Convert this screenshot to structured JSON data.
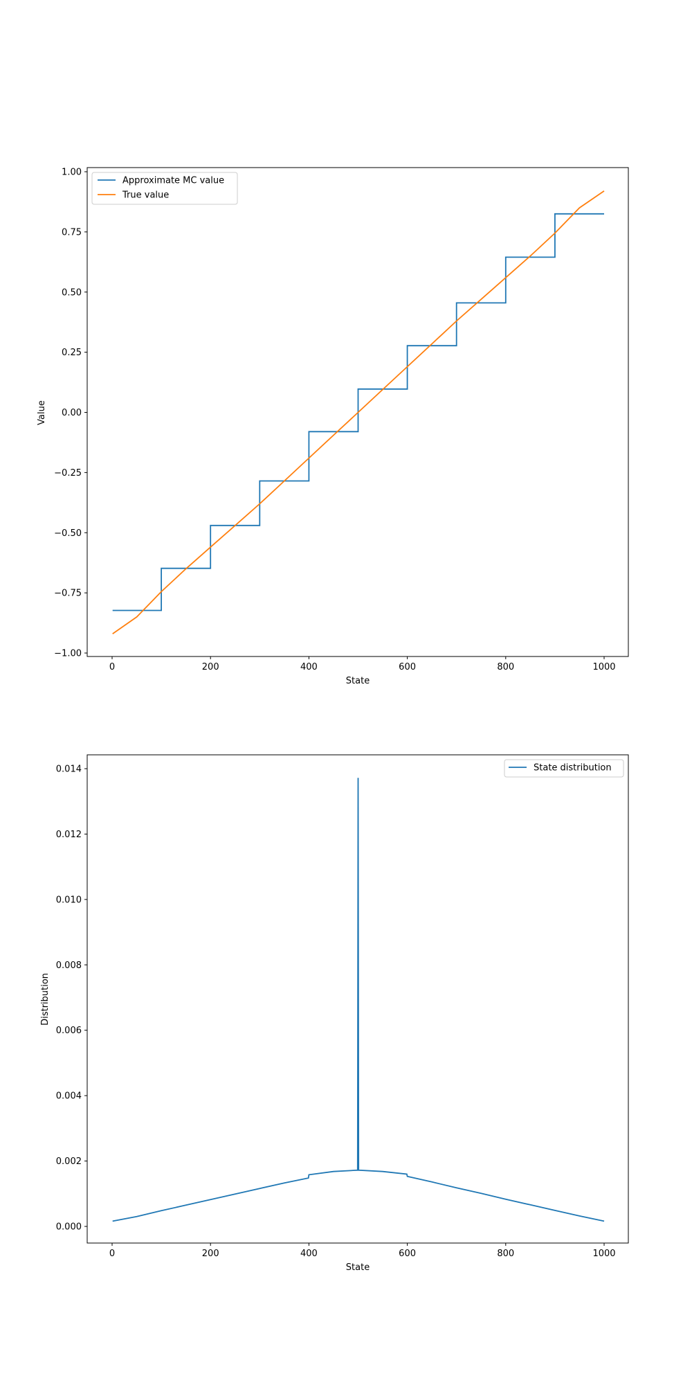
{
  "chart_data": [
    {
      "type": "line",
      "title": "",
      "xlabel": "State",
      "ylabel": "Value",
      "xlim": [
        0,
        1000
      ],
      "ylim": [
        -1.0,
        1.0
      ],
      "xticks": [
        "0",
        "200",
        "400",
        "600",
        "800",
        "1000"
      ],
      "yticks": [
        "−1.00",
        "−0.75",
        "−0.50",
        "−0.25",
        "0.00",
        "0.25",
        "0.50",
        "0.75",
        "1.00"
      ],
      "grid": false,
      "legend_position": "upper left",
      "series": [
        {
          "name": "Approximate MC value",
          "color": "#1f77b4",
          "style": "step",
          "group_size": 100,
          "values": [
            -0.823,
            -0.648,
            -0.47,
            -0.285,
            -0.08,
            0.097,
            0.277,
            0.455,
            0.645,
            0.825
          ]
        },
        {
          "name": "True value",
          "color": "#ff7f0e",
          "style": "line",
          "x": [
            1,
            50,
            100,
            150,
            200,
            250,
            300,
            350,
            400,
            450,
            500,
            550,
            600,
            650,
            700,
            750,
            800,
            850,
            900,
            950,
            1000
          ],
          "y": [
            -0.92,
            -0.85,
            -0.745,
            -0.65,
            -0.56,
            -0.47,
            -0.38,
            -0.285,
            -0.19,
            -0.095,
            0.0,
            0.095,
            0.19,
            0.285,
            0.38,
            0.47,
            0.56,
            0.65,
            0.745,
            0.85,
            0.92
          ]
        }
      ]
    },
    {
      "type": "line",
      "title": "",
      "xlabel": "State",
      "ylabel": "Distribution",
      "xlim": [
        0,
        1000
      ],
      "ylim": [
        0,
        0.014
      ],
      "xticks": [
        "0",
        "200",
        "400",
        "600",
        "800",
        "1000"
      ],
      "yticks": [
        "0.000",
        "0.002",
        "0.004",
        "0.006",
        "0.008",
        "0.010",
        "0.012",
        "0.014"
      ],
      "grid": false,
      "legend_position": "upper right",
      "series": [
        {
          "name": "State distribution",
          "color": "#1f77b4",
          "x": [
            1,
            50,
            100,
            150,
            200,
            250,
            300,
            350,
            399,
            400,
            450,
            499,
            500,
            501,
            550,
            599,
            600,
            650,
            700,
            750,
            800,
            850,
            900,
            950,
            1000
          ],
          "y": [
            0.00016,
            0.0003,
            0.00048,
            0.00065,
            0.00082,
            0.00099,
            0.00116,
            0.00133,
            0.00148,
            0.00158,
            0.00168,
            0.00172,
            0.01372,
            0.00172,
            0.00168,
            0.0016,
            0.00153,
            0.00136,
            0.00118,
            0.00101,
            0.00083,
            0.00066,
            0.00049,
            0.00032,
            0.00016
          ]
        }
      ]
    }
  ]
}
